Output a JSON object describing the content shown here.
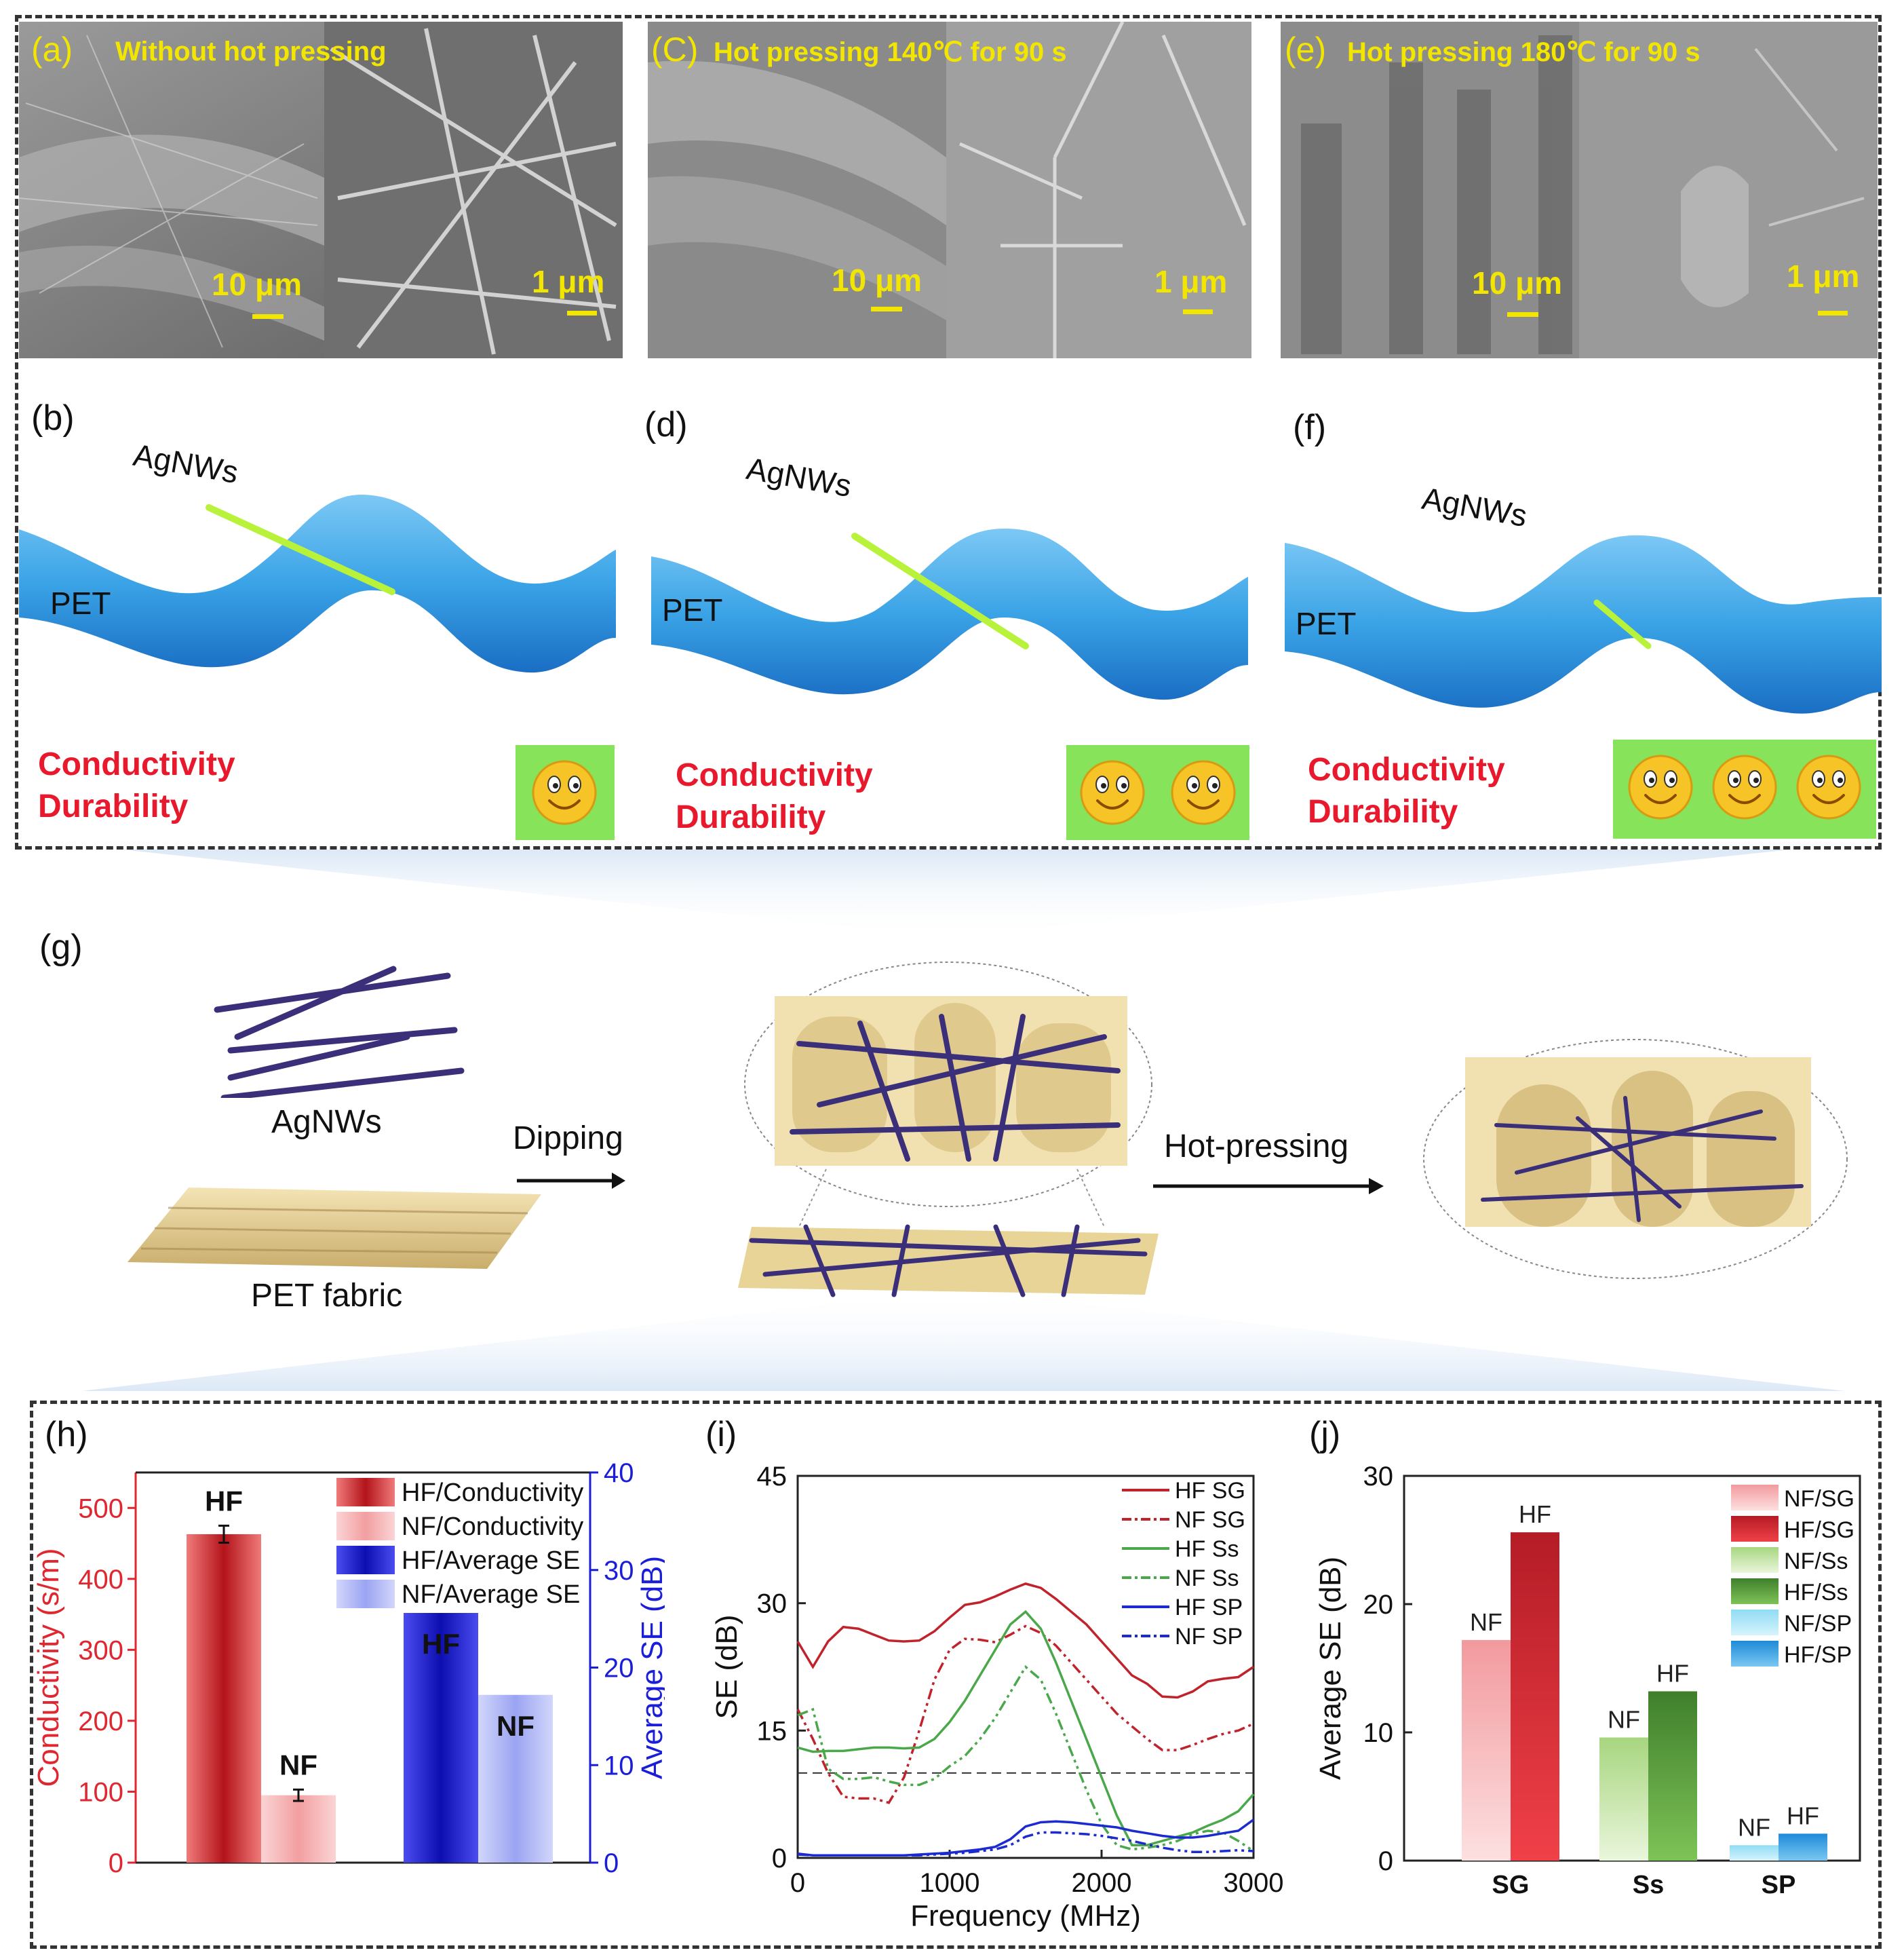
{
  "sem_panels": [
    {
      "letter": "(a)",
      "title": "Without hot pressing",
      "scale_left": "10 μm",
      "scale_right": "1 μm"
    },
    {
      "letter": "(C)",
      "title": "Hot pressing 140℃ for 90 s",
      "scale_left": "10 μm",
      "scale_right": "1 μm"
    },
    {
      "letter": "(e)",
      "title": "Hot pressing 180℃ for 90 s",
      "scale_left": "10 μm",
      "scale_right": "1 μm"
    }
  ],
  "schematics": [
    {
      "letter": "(b)",
      "agnws": "AgNWs",
      "pet": "PET",
      "prop1": "Conductivity",
      "prop2": "Durability",
      "smileys": 1
    },
    {
      "letter": "(d)",
      "agnws": "AgNWs",
      "pet": "PET",
      "prop1": "Conductivity",
      "prop2": "Durability",
      "smileys": 2
    },
    {
      "letter": "(f)",
      "agnws": "AgNWs",
      "pet": "PET",
      "prop1": "Conductivity",
      "prop2": "Durability",
      "smileys": 3
    }
  ],
  "process": {
    "letter": "(g)",
    "agnws": "AgNWs",
    "fabric": "PET fabric",
    "step1": "Dipping",
    "step2": "Hot-pressing"
  },
  "colors": {
    "red": "#e0262f",
    "red_dark": "#a8141c",
    "pink": "#f4a7a8",
    "blue": "#1b1ed8",
    "blue_light": "#aab1f5",
    "green": "#5a9c3a",
    "green_light": "#c9e6a8",
    "cyan": "#9ce4f5",
    "cyan_dark": "#3f9fe0",
    "pet_blue": "#3aa3e6",
    "agnw_green": "#b8f23a",
    "label_yellow": "#f2e600",
    "smiley_bg": "#86e35a"
  },
  "chart_data": [
    {
      "panel": "(h)",
      "type": "bar",
      "ylabel_left": "Conductivity (s/m)",
      "ylabel_right": "Average SE (dB)",
      "ylim_left": [
        0,
        550
      ],
      "ylim_right": [
        0,
        40
      ],
      "yticks_left": [
        0,
        100,
        200,
        300,
        400,
        500
      ],
      "yticks_right": [
        0,
        10,
        20,
        30,
        40
      ],
      "legend": [
        "HF/Conductivity",
        "NF/Conductivity",
        "HF/Average SE",
        "NF/Average SE"
      ],
      "bars": [
        {
          "label": "HF",
          "axis": "left",
          "value": 463,
          "error": 12
        },
        {
          "label": "NF",
          "axis": "left",
          "value": 95,
          "error": 8
        },
        {
          "label": "HF",
          "axis": "right",
          "value": 25.6
        },
        {
          "label": "NF",
          "axis": "right",
          "value": 17.2
        }
      ]
    },
    {
      "panel": "(i)",
      "type": "line",
      "xlabel": "Frequency (MHz)",
      "ylabel": "SE (dB)",
      "xlim": [
        0,
        3000
      ],
      "ylim": [
        0,
        45
      ],
      "xticks": [
        0,
        1000,
        2000,
        3000
      ],
      "yticks": [
        0,
        15,
        30,
        45
      ],
      "reference_line": 10,
      "x": [
        0,
        100,
        200,
        300,
        400,
        500,
        600,
        700,
        800,
        900,
        1000,
        1100,
        1200,
        1300,
        1400,
        1500,
        1600,
        1700,
        1800,
        1900,
        2000,
        2100,
        2200,
        2300,
        2400,
        2500,
        2600,
        2700,
        2800,
        2900,
        3000
      ],
      "series": [
        {
          "name": "HF SG",
          "values": [
            25.5,
            22.5,
            25.5,
            27.2,
            27.0,
            26.3,
            25.6,
            25.5,
            25.6,
            26.7,
            28.3,
            29.8,
            30.1,
            30.8,
            31.6,
            32.3,
            31.8,
            30.5,
            29.0,
            27.5,
            25.5,
            23.5,
            21.5,
            20.5,
            19.0,
            18.9,
            19.6,
            20.8,
            21.1,
            21.3,
            22.5
          ]
        },
        {
          "name": "NF SG",
          "values": [
            17.5,
            14.0,
            10.0,
            7.2,
            7.0,
            7.0,
            6.5,
            9.5,
            15.0,
            21.0,
            24.5,
            25.8,
            25.7,
            25.4,
            26.3,
            27.3,
            26.5,
            25.0,
            23.0,
            21.0,
            19.0,
            17.0,
            15.5,
            14.0,
            12.7,
            12.7,
            13.3,
            14.0,
            14.6,
            15.0,
            15.8
          ]
        },
        {
          "name": "HF Ss",
          "values": [
            13.0,
            12.5,
            12.6,
            12.6,
            12.8,
            13.0,
            13.0,
            12.9,
            13.0,
            14.0,
            16.0,
            18.5,
            21.5,
            24.5,
            27.5,
            29.0,
            27.0,
            23.0,
            18.5,
            14.0,
            9.5,
            5.0,
            1.5,
            1.5,
            2.0,
            2.5,
            3.0,
            3.8,
            4.5,
            5.5,
            7.5
          ]
        },
        {
          "name": "NF Ss",
          "values": [
            16.8,
            17.5,
            10.5,
            9.3,
            9.3,
            9.5,
            9.0,
            8.6,
            8.6,
            9.3,
            10.8,
            12.0,
            14.0,
            16.5,
            19.5,
            22.5,
            21.0,
            17.0,
            12.5,
            8.0,
            4.0,
            1.5,
            1.0,
            1.2,
            1.5,
            2.0,
            2.8,
            3.2,
            3.0,
            2.0,
            0.8
          ]
        },
        {
          "name": "HF SP",
          "values": [
            0.5,
            0.3,
            0.3,
            0.3,
            0.3,
            0.3,
            0.3,
            0.3,
            0.4,
            0.5,
            0.6,
            0.8,
            1.0,
            1.3,
            2.2,
            3.7,
            4.2,
            4.3,
            4.2,
            4.0,
            3.8,
            3.6,
            3.2,
            2.9,
            2.6,
            2.4,
            2.4,
            2.6,
            2.9,
            3.2,
            4.5
          ]
        },
        {
          "name": "NF SP",
          "values": [
            0.4,
            0.3,
            0.3,
            0.3,
            0.3,
            0.3,
            0.3,
            0.3,
            0.3,
            0.4,
            0.5,
            0.6,
            0.8,
            1.0,
            1.5,
            2.5,
            3.0,
            3.0,
            2.9,
            2.8,
            2.6,
            2.3,
            2.0,
            1.6,
            1.2,
            0.9,
            0.7,
            0.7,
            0.8,
            0.9,
            0.8
          ]
        }
      ]
    },
    {
      "panel": "(j)",
      "type": "bar",
      "ylabel": "Average SE (dB)",
      "ylim": [
        0,
        30
      ],
      "yticks": [
        0,
        10,
        20,
        30
      ],
      "categories": [
        "SG",
        "Ss",
        "SP"
      ],
      "legend": [
        "NF/SG",
        "HF/SG",
        "NF/Ss",
        "HF/Ss",
        "NF/SP",
        "HF/SP"
      ],
      "series": [
        {
          "name": "NF",
          "values": [
            17.2,
            9.6,
            1.2
          ]
        },
        {
          "name": "HF",
          "values": [
            25.6,
            13.2,
            2.1
          ]
        }
      ]
    }
  ]
}
